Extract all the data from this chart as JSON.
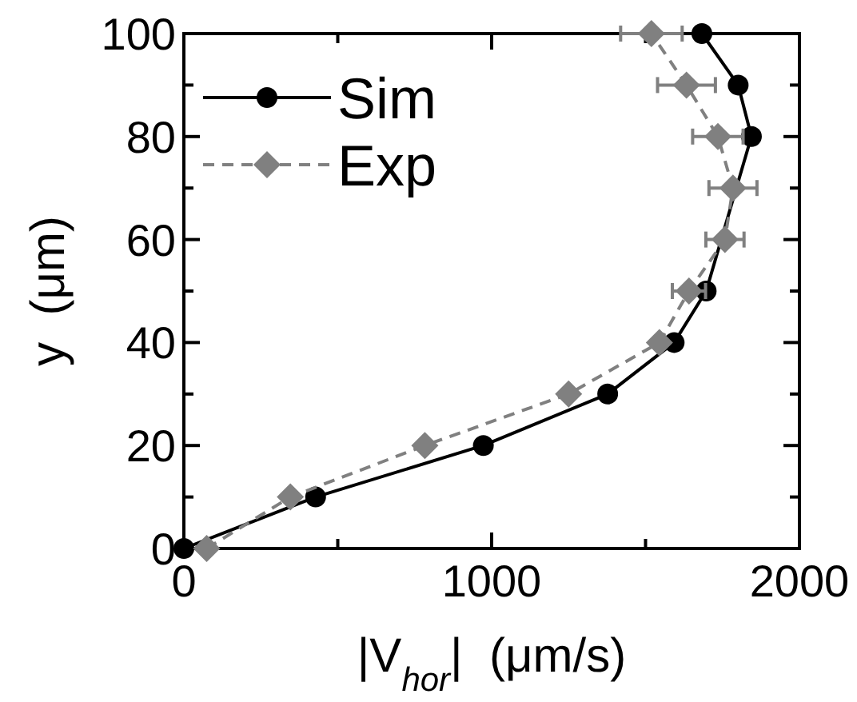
{
  "chart_data": {
    "type": "line",
    "xlabel": "|V$_{hor}$|  (μm/s)",
    "ylabel": "y  (μm)",
    "xlim": [
      0,
      2000
    ],
    "ylim": [
      0,
      100
    ],
    "xticks": [
      0,
      {
        "value": 500,
        "label": null
      },
      1000,
      {
        "value": 1500,
        "label": null
      },
      2000
    ],
    "yticks": [
      0,
      {
        "value": 10,
        "label": null
      },
      20,
      {
        "value": 30,
        "label": null
      },
      40,
      {
        "value": 50,
        "label": null
      },
      60,
      {
        "value": 70,
        "label": null
      },
      80,
      {
        "value": 90,
        "label": null
      },
      100
    ],
    "legend": "top left",
    "grid": false,
    "series": [
      {
        "name": "Sim",
        "color": "#000000",
        "marker": "circle",
        "line_style": "solid",
        "x": [
          0,
          428,
          973,
          1377,
          1593,
          1697,
          1765,
          1790,
          1844,
          1801,
          1683
        ],
        "values": [
          0,
          10,
          20,
          30,
          40,
          50,
          null,
          null,
          80,
          90,
          100
        ]
      },
      {
        "name": "Exp",
        "color": "#808080",
        "marker": "diamond",
        "line_style": "dashed",
        "x": [
          74,
          346,
          783,
          1250,
          1545,
          1641,
          1758,
          1784,
          1735,
          1633,
          1519
        ],
        "values": [
          0,
          10,
          20,
          30,
          40,
          50,
          60,
          70,
          80,
          90,
          100
        ],
        "xerrors": [
          null,
          null,
          null,
          null,
          null,
          54,
          62,
          78,
          82,
          94,
          100
        ]
      }
    ]
  }
}
